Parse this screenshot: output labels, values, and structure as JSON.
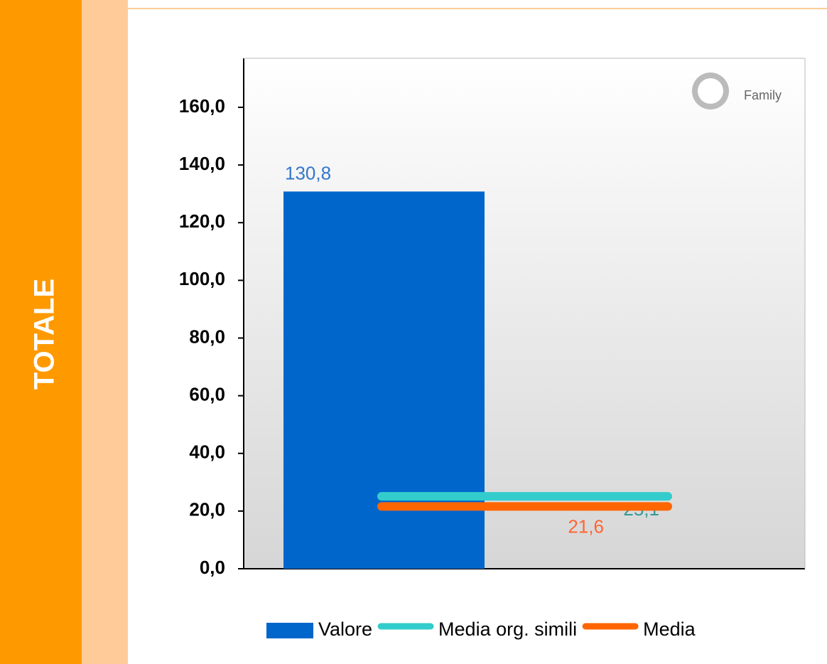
{
  "side_label": "TOTALE",
  "chart_data": {
    "type": "bar",
    "logo_text": "Family",
    "categories": [
      null
    ],
    "series": [
      {
        "name": "Valore",
        "type": "bar",
        "color": "#0066cc",
        "label_color": "#3377cc",
        "values": [
          130.8
        ],
        "value_labels": [
          "130,8"
        ]
      },
      {
        "name": "Media org. simili",
        "type": "line",
        "color": "#33cccc",
        "label_color": "#339999",
        "values": [
          25.1
        ],
        "value_labels": [
          "25,1"
        ]
      },
      {
        "name": "Media",
        "type": "line",
        "color": "#ff6600",
        "label_color": "#ff6633",
        "values": [
          21.6
        ],
        "value_labels": [
          "21,6"
        ]
      }
    ],
    "ylim": [
      0,
      177
    ],
    "yticks": [
      {
        "value": 0,
        "label": "0,0"
      },
      {
        "value": 20,
        "label": "20,0"
      },
      {
        "value": 40,
        "label": "40,0"
      },
      {
        "value": 60,
        "label": "60,0"
      },
      {
        "value": 80,
        "label": "80,0"
      },
      {
        "value": 100,
        "label": "100,0"
      },
      {
        "value": 120,
        "label": "120,0"
      },
      {
        "value": 140,
        "label": "140,0"
      },
      {
        "value": 160,
        "label": "160,0"
      }
    ],
    "legend": "bottom"
  }
}
